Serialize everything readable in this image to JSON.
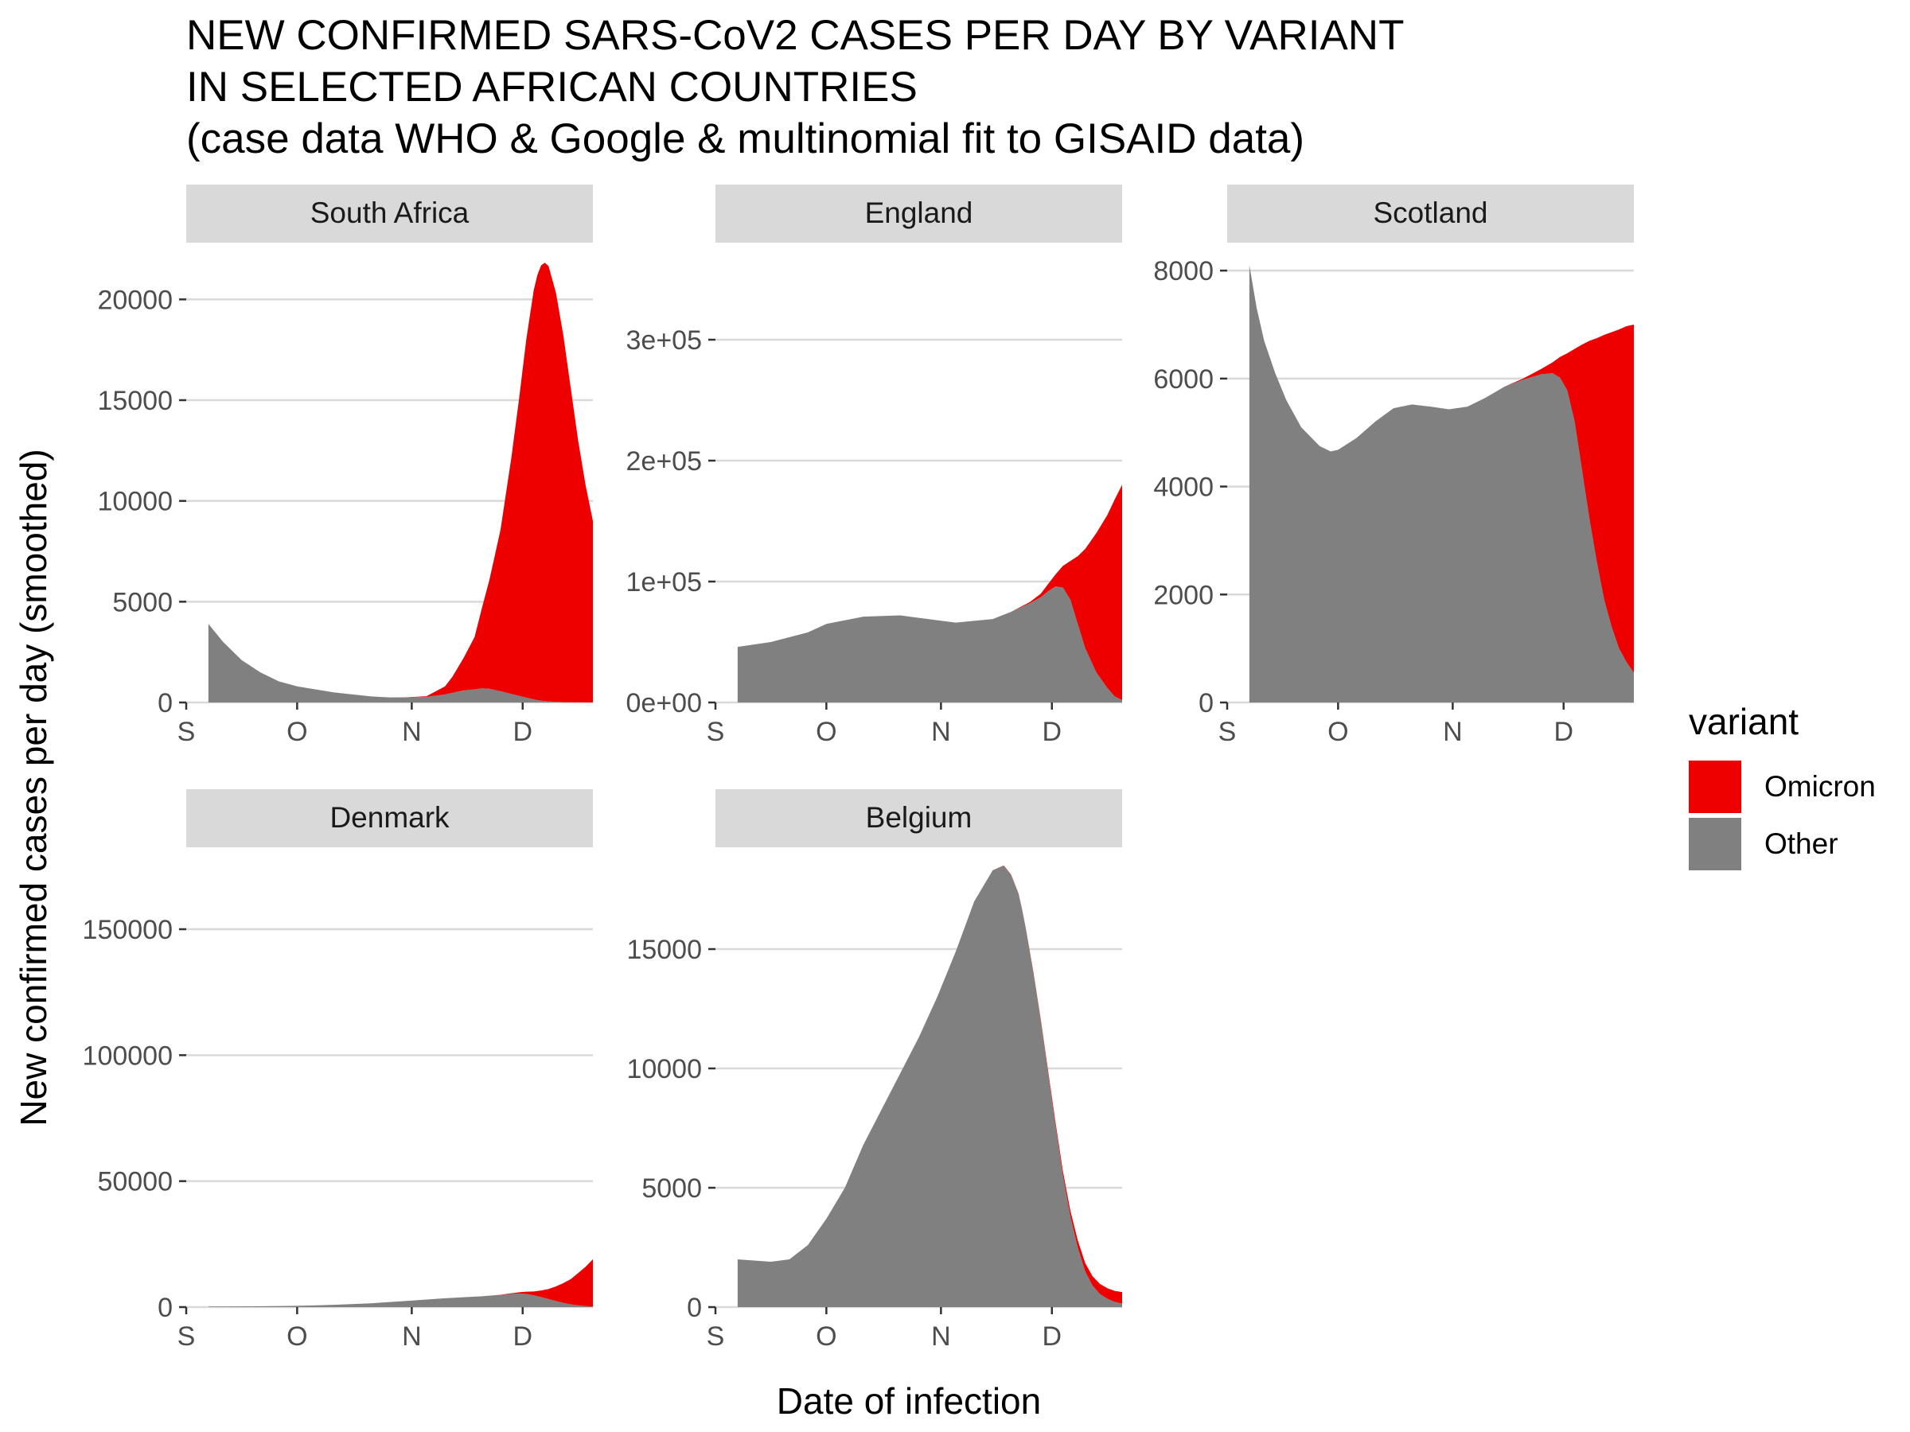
{
  "title_lines": [
    "NEW CONFIRMED SARS-CoV2 CASES PER DAY BY VARIANT",
    "IN SELECTED AFRICAN COUNTRIES",
    "(case data WHO & Google & multinomial fit to GISAID data)"
  ],
  "chart_data": {
    "type": "area",
    "stacked": true,
    "xlabel": "Date of infection",
    "ylabel": "New confirmed cases per day (smoothed)",
    "x_ticks": [
      "S",
      "O",
      "N",
      "D"
    ],
    "x_tick_days": [
      0,
      30,
      61,
      91
    ],
    "x_unit": "days since 1 September 2021",
    "grid": "horizontal major",
    "legend": {
      "title": "variant",
      "position": "right",
      "entries": [
        {
          "name": "Omicron",
          "color": "#ee0000"
        },
        {
          "name": "Other",
          "color": "#808080"
        }
      ]
    },
    "panels": [
      {
        "name": "South Africa",
        "xlim": [
          0,
          110
        ],
        "ylim": [
          0,
          22500
        ],
        "y_ticks": [
          0,
          5000,
          10000,
          15000,
          20000
        ],
        "y_tick_labels": [
          "0",
          "5000",
          "10000",
          "15000",
          "20000"
        ],
        "x": [
          6,
          10,
          15,
          20,
          25,
          30,
          40,
          50,
          55,
          60,
          65,
          70,
          72,
          75,
          78,
          80,
          82,
          85,
          88,
          90,
          92,
          94,
          95,
          96,
          97,
          98,
          100,
          102,
          104,
          106,
          108,
          110
        ],
        "series": [
          {
            "name": "Other",
            "values": [
              3900,
              3000,
              2100,
              1500,
              1050,
              800,
              500,
              300,
              250,
              250,
              280,
              400,
              480,
              600,
              650,
              700,
              680,
              560,
              420,
              330,
              240,
              160,
              120,
              90,
              70,
              55,
              35,
              20,
              12,
              8,
              5,
              3
            ]
          },
          {
            "name": "Omicron",
            "values": [
              0,
              0,
              0,
              0,
              0,
              0,
              0,
              0,
              0,
              10,
              30,
              400,
              800,
              1600,
              2600,
              4000,
              5400,
              8000,
              11800,
              14700,
              17800,
              20300,
              21100,
              21600,
              21750,
              21600,
              20300,
              18200,
              15600,
              13000,
              10800,
              9000
            ]
          }
        ]
      },
      {
        "name": "England",
        "xlim": [
          0,
          110
        ],
        "ylim": [
          0,
          375000
        ],
        "y_ticks": [
          0,
          100000,
          200000,
          300000
        ],
        "y_tick_labels": [
          "0e+00",
          "1e+05",
          "2e+05",
          "3e+05"
        ],
        "x": [
          6,
          15,
          25,
          30,
          40,
          50,
          60,
          65,
          75,
          80,
          85,
          88,
          90,
          92,
          94,
          96,
          98,
          100,
          103,
          106,
          108,
          110
        ],
        "series": [
          {
            "name": "Other",
            "values": [
              46000,
              50000,
              58000,
              65000,
              71000,
              72000,
              68000,
              66000,
              69000,
              75000,
              82000,
              87000,
              92000,
              96000,
              95000,
              85000,
              65000,
              45000,
              25000,
              12000,
              5000,
              2000
            ]
          },
          {
            "name": "Omicron",
            "values": [
              0,
              0,
              0,
              0,
              0,
              0,
              0,
              0,
              0,
              0,
              1000,
              3000,
              6000,
              10000,
              18000,
              32000,
              56000,
              82000,
              115000,
              143000,
              163000,
              178000
            ]
          }
        ]
      },
      {
        "name": "Scotland",
        "xlim": [
          0,
          110
        ],
        "ylim": [
          0,
          8400
        ],
        "y_ticks": [
          0,
          2000,
          4000,
          6000,
          8000
        ],
        "y_tick_labels": [
          "0",
          "2000",
          "4000",
          "6000",
          "8000"
        ],
        "x": [
          6,
          8,
          10,
          13,
          16,
          20,
          25,
          28,
          30,
          35,
          40,
          45,
          50,
          55,
          60,
          65,
          70,
          75,
          80,
          85,
          88,
          90,
          92,
          94,
          96,
          98,
          100,
          102,
          104,
          106,
          108,
          110
        ],
        "series": [
          {
            "name": "Other",
            "values": [
              8100,
              7300,
              6700,
              6100,
              5600,
              5100,
              4750,
              4650,
              4680,
              4900,
              5200,
              5450,
              5520,
              5480,
              5430,
              5480,
              5650,
              5850,
              5980,
              6080,
              6100,
              6020,
              5780,
              5200,
              4300,
              3400,
              2600,
              1900,
              1400,
              1000,
              750,
              550
            ]
          },
          {
            "name": "Omicron",
            "values": [
              0,
              0,
              0,
              0,
              0,
              0,
              0,
              0,
              0,
              0,
              0,
              0,
              0,
              0,
              0,
              0,
              0,
              0,
              20,
              100,
              200,
              380,
              690,
              1350,
              2330,
              3300,
              4150,
              4910,
              5460,
              5910,
              6220,
              6450
            ]
          }
        ]
      },
      {
        "name": "Denmark",
        "xlim": [
          0,
          110
        ],
        "ylim": [
          0,
          180000
        ],
        "y_ticks": [
          0,
          50000,
          100000,
          150000
        ],
        "y_tick_labels": [
          "0",
          "50000",
          "100000",
          "150000"
        ],
        "x": [
          6,
          20,
          30,
          40,
          50,
          55,
          60,
          65,
          70,
          75,
          80,
          85,
          88,
          90,
          92,
          94,
          96,
          98,
          100,
          102,
          104,
          106,
          108,
          110
        ],
        "series": [
          {
            "name": "Other",
            "values": [
              200,
              300,
              500,
              900,
              1500,
              2000,
              2500,
              3000,
              3500,
              3900,
              4300,
              4800,
              5200,
              5400,
              5200,
              4700,
              4000,
              3200,
              2400,
              1700,
              1100,
              700,
              400,
              200
            ]
          },
          {
            "name": "Omicron",
            "values": [
              0,
              0,
              0,
              0,
              0,
              0,
              0,
              0,
              0,
              0,
              0,
              100,
              300,
              500,
              900,
              1500,
              2600,
              4000,
              5800,
              7800,
              10000,
              12800,
              15600,
              18800
            ]
          }
        ]
      },
      {
        "name": "Belgium",
        "xlim": [
          0,
          110
        ],
        "ylim": [
          0,
          19000
        ],
        "y_ticks": [
          0,
          5000,
          10000,
          15000
        ],
        "y_tick_labels": [
          "0",
          "5000",
          "10000",
          "15000"
        ],
        "x": [
          6,
          15,
          20,
          25,
          30,
          35,
          40,
          45,
          50,
          55,
          60,
          65,
          70,
          75,
          78,
          80,
          82,
          83,
          84,
          86,
          88,
          90,
          92,
          94,
          96,
          98,
          100,
          102,
          104,
          106,
          108,
          110
        ],
        "series": [
          {
            "name": "Other",
            "values": [
              2000,
              1900,
              2000,
              2600,
              3700,
              5000,
              6800,
              8300,
              9800,
              11300,
              13000,
              14900,
              17000,
              18300,
              18500,
              18100,
              17300,
              16600,
              15800,
              14000,
              12000,
              9800,
              7600,
              5500,
              3800,
              2500,
              1500,
              900,
              550,
              350,
              220,
              150
            ]
          },
          {
            "name": "Omicron",
            "values": [
              0,
              0,
              0,
              0,
              0,
              0,
              0,
              0,
              0,
              0,
              0,
              0,
              0,
              5,
              10,
              15,
              20,
              25,
              30,
              45,
              60,
              90,
              130,
              180,
              240,
              300,
              350,
              390,
              420,
              440,
              460,
              480
            ]
          }
        ]
      }
    ]
  }
}
